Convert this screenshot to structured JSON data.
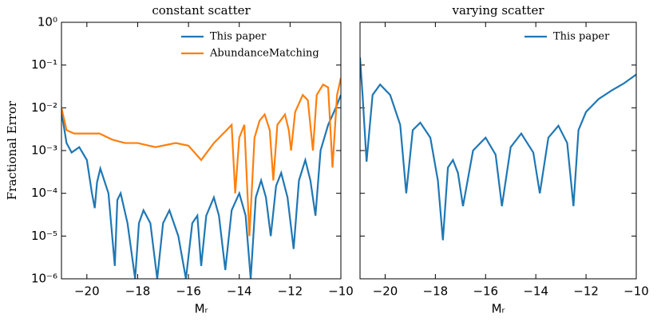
{
  "chart_data": [
    {
      "type": "line",
      "title": "constant scatter",
      "xlabel": "Mᵣ",
      "ylabel": "Fractional Error",
      "xlim": [
        -21,
        -10
      ],
      "ylim": [
        1e-06,
        1
      ],
      "log_y": true,
      "legend": "upper right",
      "xticks": [
        {
          "value": -20,
          "label": "−20"
        },
        {
          "value": -18,
          "label": "−18"
        },
        {
          "value": -16,
          "label": "−16"
        },
        {
          "value": -14,
          "label": "−14"
        },
        {
          "value": -12,
          "label": "−12"
        },
        {
          "value": -10,
          "label": "−10"
        }
      ],
      "yticks": [
        {
          "value": 1,
          "label": "10⁰"
        },
        {
          "value": 0.1,
          "label": "10⁻¹"
        },
        {
          "value": 0.01,
          "label": "10⁻²"
        },
        {
          "value": 0.001,
          "label": "10⁻³"
        },
        {
          "value": 0.0001,
          "label": "10⁻⁴"
        },
        {
          "value": 1e-05,
          "label": "10⁻⁵"
        },
        {
          "value": 1e-06,
          "label": "10⁻⁶"
        }
      ],
      "series": [
        {
          "name": "This paper",
          "color": "#1f77b4",
          "x": [
            -21,
            -20.8,
            -20.6,
            -20.3,
            -20.0,
            -19.8,
            -19.69,
            -19.6,
            -19.47,
            -19.15,
            -18.9,
            -18.8,
            -18.67,
            -18.4,
            -18.1,
            -17.95,
            -17.77,
            -17.5,
            -17.23,
            -17.0,
            -16.75,
            -16.4,
            -16.1,
            -15.85,
            -15.65,
            -15.5,
            -15.3,
            -15.0,
            -14.8,
            -14.55,
            -14.3,
            -14.0,
            -13.75,
            -13.55,
            -13.35,
            -13.14,
            -12.95,
            -12.76,
            -12.55,
            -12.35,
            -12.1,
            -11.86,
            -11.65,
            -11.4,
            -11.2,
            -11.0,
            -10.8,
            -10.5,
            -10.2,
            -10.0
          ],
          "values": [
            0.008,
            0.0015,
            0.0009,
            0.0012,
            0.0006,
            0.0001,
            4.5e-05,
            0.00018,
            0.00038,
            0.0001,
            2e-06,
            7e-05,
            0.0001,
            2e-05,
            1e-06,
            2e-05,
            4e-05,
            2e-05,
            1e-06,
            2e-05,
            4e-05,
            1e-05,
            1e-06,
            2e-05,
            3e-05,
            2e-06,
            3e-05,
            8e-05,
            3e-05,
            1.6e-06,
            4e-05,
            0.0001,
            3e-05,
            1e-06,
            8e-05,
            0.0002,
            8e-05,
            1e-05,
            0.00015,
            0.0003,
            8e-05,
            5e-06,
            0.0002,
            0.0006,
            0.0002,
            3e-05,
            0.001,
            0.004,
            0.01,
            0.02
          ]
        },
        {
          "name": "AbundanceMatching",
          "color": "#ff7f0e",
          "x": [
            -21,
            -20.8,
            -20.5,
            -20.0,
            -19.5,
            -19.0,
            -18.5,
            -18.0,
            -17.3,
            -16.5,
            -16.0,
            -15.5,
            -15.0,
            -14.5,
            -14.3,
            -14.16,
            -14.0,
            -13.8,
            -13.6,
            -13.4,
            -13.2,
            -13.0,
            -12.8,
            -12.66,
            -12.5,
            -12.2,
            -12.05,
            -11.96,
            -11.8,
            -11.5,
            -11.3,
            -11.1,
            -10.95,
            -10.7,
            -10.5,
            -10.33,
            -10.15,
            -10.0
          ],
          "values": [
            0.01,
            0.003,
            0.0025,
            0.0025,
            0.0025,
            0.0018,
            0.0015,
            0.0015,
            0.0012,
            0.0015,
            0.0013,
            0.0006,
            0.0015,
            0.003,
            0.004,
            0.0001,
            0.002,
            0.004,
            1e-05,
            0.002,
            0.005,
            0.007,
            0.003,
            0.0002,
            0.004,
            0.007,
            0.003,
            0.001,
            0.008,
            0.02,
            0.015,
            0.001,
            0.02,
            0.035,
            0.03,
            0.0004,
            0.02,
            0.05
          ]
        }
      ]
    },
    {
      "type": "line",
      "title": "varying scatter",
      "xlabel": "Mᵣ",
      "xlim": [
        -21,
        -10
      ],
      "ylim": [
        1e-06,
        1
      ],
      "log_y": true,
      "legend": "upper right",
      "xticks": [
        {
          "value": -20,
          "label": "−20"
        },
        {
          "value": -18,
          "label": "−18"
        },
        {
          "value": -16,
          "label": "−16"
        },
        {
          "value": -14,
          "label": "−14"
        },
        {
          "value": -12,
          "label": "−12"
        },
        {
          "value": -10,
          "label": "−10"
        }
      ],
      "yticks": [
        1,
        0.1,
        0.01,
        0.001,
        0.0001,
        1e-05,
        1e-06
      ],
      "series": [
        {
          "name": "This paper",
          "color": "#1f77b4",
          "x": [
            -21,
            -20.9,
            -20.74,
            -20.5,
            -20.2,
            -19.8,
            -19.4,
            -19.16,
            -18.9,
            -18.6,
            -18.2,
            -17.9,
            -17.7,
            -17.5,
            -17.3,
            -17.1,
            -16.9,
            -16.5,
            -16.0,
            -15.6,
            -15.35,
            -15.0,
            -14.58,
            -14.1,
            -13.84,
            -13.5,
            -13.1,
            -12.75,
            -12.5,
            -12.3,
            -12.0,
            -11.5,
            -11.0,
            -10.5,
            -10.0
          ],
          "values": [
            0.15,
            0.02,
            0.00055,
            0.02,
            0.035,
            0.02,
            0.004,
            0.0001,
            0.003,
            0.0045,
            0.002,
            0.0002,
            8e-06,
            0.0004,
            0.0006,
            0.0003,
            5e-05,
            0.001,
            0.002,
            0.0008,
            5e-05,
            0.0012,
            0.0025,
            0.0009,
            0.0001,
            0.002,
            0.0038,
            0.0015,
            5e-05,
            0.003,
            0.008,
            0.016,
            0.025,
            0.037,
            0.06
          ]
        }
      ]
    }
  ]
}
